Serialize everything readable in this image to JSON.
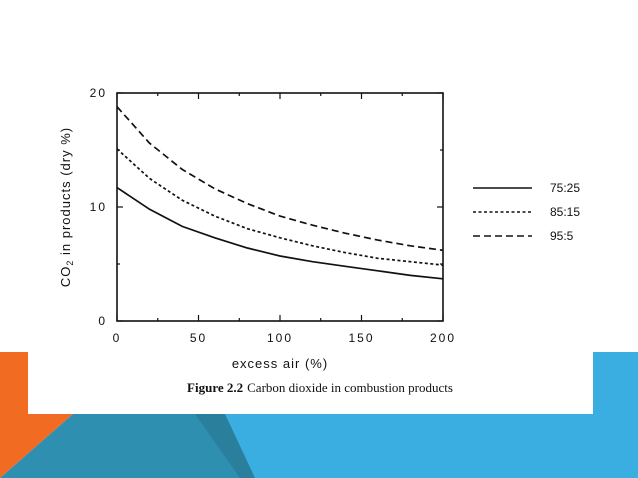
{
  "colors": {
    "slide_background": "#ffffff",
    "accent_orange": "#f26b22",
    "accent_blue": "#3aaee0",
    "accent_teal": "#2e8fb0",
    "accent_dark_teal": "#2a7f9c",
    "ink": "#111111"
  },
  "caption": {
    "figure_number": "Figure 2.2",
    "text": "Carbon dioxide in combustion products"
  },
  "chart_data": {
    "type": "line",
    "title": "",
    "xlabel": "excess air (%)",
    "ylabel_prefix": "CO",
    "ylabel_subscript": "2",
    "ylabel_suffix": " in products (dry %)",
    "xlim": [
      0,
      200
    ],
    "ylim": [
      0,
      20
    ],
    "xticks": [
      0,
      50,
      100,
      150,
      200
    ],
    "yticks": [
      0,
      10,
      20
    ],
    "grid": false,
    "legend_position": "right",
    "series": [
      {
        "name": "75:25",
        "dash": "solid",
        "x": [
          0,
          20,
          40,
          60,
          80,
          100,
          120,
          140,
          160,
          180,
          200
        ],
        "y": [
          11.7,
          9.8,
          8.3,
          7.3,
          6.4,
          5.7,
          5.2,
          4.8,
          4.4,
          4.0,
          3.7
        ]
      },
      {
        "name": "85:15",
        "dash": "dotted",
        "x": [
          0,
          20,
          40,
          60,
          80,
          100,
          120,
          140,
          160,
          180,
          200
        ],
        "y": [
          15.1,
          12.5,
          10.6,
          9.2,
          8.1,
          7.3,
          6.6,
          6.0,
          5.5,
          5.2,
          4.9
        ]
      },
      {
        "name": "95:5",
        "dash": "dashed",
        "x": [
          0,
          20,
          40,
          60,
          80,
          100,
          120,
          140,
          160,
          180,
          200
        ],
        "y": [
          18.8,
          15.6,
          13.3,
          11.6,
          10.3,
          9.2,
          8.4,
          7.7,
          7.1,
          6.6,
          6.2
        ]
      }
    ]
  }
}
